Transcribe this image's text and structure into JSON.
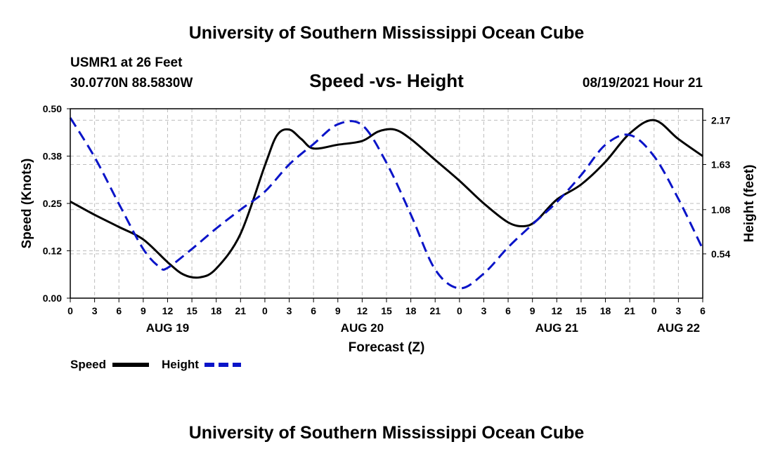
{
  "header": {
    "title": "University of Southern Mississippi Ocean Cube",
    "station": "USMR1 at 26 Feet",
    "location": "30.0770N  88.5830W",
    "datetime": "08/19/2021 Hour 21"
  },
  "footer": {
    "title": "University of Southern Mississippi Ocean Cube"
  },
  "colors": {
    "speed": "#000000",
    "height": "#0a14c8",
    "grid": "#bdbdbd"
  },
  "chart_data": {
    "type": "line",
    "title": "Speed -vs- Height",
    "xlabel": "Forecast (Z)",
    "ylabel": "Speed (Knots)",
    "y2label": "Height (feet)",
    "x_unit": "hours since AUG 19 00Z",
    "xlim": [
      0,
      78
    ],
    "ylim": [
      0,
      0.5
    ],
    "y2lim": [
      0,
      2.31
    ],
    "x_ticks": [
      0,
      3,
      6,
      9,
      12,
      15,
      18,
      21,
      24,
      27,
      30,
      33,
      36,
      39,
      42,
      45,
      48,
      51,
      54,
      57,
      60,
      63,
      66,
      69,
      72,
      75,
      78
    ],
    "x_tick_labels": [
      "0",
      "3",
      "6",
      "9",
      "12",
      "15",
      "18",
      "21",
      "0",
      "3",
      "6",
      "9",
      "12",
      "15",
      "18",
      "21",
      "0",
      "3",
      "6",
      "9",
      "12",
      "15",
      "18",
      "21",
      "0",
      "3",
      "6"
    ],
    "y_ticks": [
      0,
      0.125,
      0.25,
      0.375,
      0.5
    ],
    "y_tick_labels": [
      "0.00",
      "0.12",
      "0.25",
      "0.38",
      "0.50"
    ],
    "y2_ticks": [
      0.54,
      1.08,
      1.63,
      2.17
    ],
    "y2_tick_labels": [
      "0.54",
      "1.08",
      "1.63",
      "2.17"
    ],
    "day_labels": [
      {
        "x": 12,
        "label": "AUG 19"
      },
      {
        "x": 36,
        "label": "AUG 20"
      },
      {
        "x": 60,
        "label": "AUG 21"
      },
      {
        "x": 75,
        "label": "AUG 22"
      }
    ],
    "series": [
      {
        "name": "Speed",
        "axis": "left",
        "style": "solid",
        "x": [
          0,
          3,
          6,
          9,
          12,
          14,
          16,
          18,
          21,
          24,
          25.5,
          27,
          28.5,
          30,
          33,
          36,
          38,
          40,
          42,
          45,
          48,
          51,
          54,
          56,
          57.5,
          60,
          63,
          66,
          69,
          72,
          75,
          78
        ],
        "values": [
          0.255,
          0.22,
          0.188,
          0.155,
          0.095,
          0.062,
          0.055,
          0.078,
          0.17,
          0.35,
          0.43,
          0.445,
          0.42,
          0.395,
          0.405,
          0.415,
          0.44,
          0.445,
          0.42,
          0.365,
          0.31,
          0.25,
          0.2,
          0.19,
          0.205,
          0.26,
          0.3,
          0.36,
          0.435,
          0.47,
          0.42,
          0.375
        ]
      },
      {
        "name": "Height",
        "axis": "right",
        "style": "dashed",
        "x": [
          0,
          3,
          6,
          9,
          11,
          12,
          15,
          18,
          21,
          24,
          27,
          30,
          33,
          36,
          39,
          42,
          45,
          48,
          51,
          54,
          57,
          60,
          63,
          66,
          69,
          72,
          75,
          78
        ],
        "values": [
          2.2,
          1.72,
          1.15,
          0.6,
          0.38,
          0.37,
          0.6,
          0.85,
          1.08,
          1.3,
          1.63,
          1.88,
          2.12,
          2.11,
          1.65,
          1.02,
          0.35,
          0.12,
          0.3,
          0.62,
          0.9,
          1.17,
          1.5,
          1.87,
          1.99,
          1.73,
          1.21,
          0.6
        ]
      }
    ],
    "legend": [
      {
        "label": "Speed",
        "style": "solid"
      },
      {
        "label": "Height",
        "style": "dashed"
      }
    ]
  }
}
